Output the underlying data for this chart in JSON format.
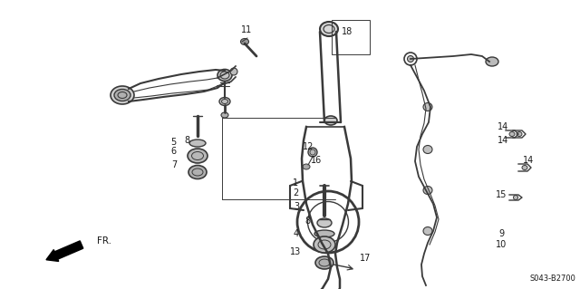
{
  "bg_color": "#ffffff",
  "line_color": "#3a3a3a",
  "text_color": "#1a1a1a",
  "diagram_code": "S043-B2700",
  "fr_label": "FR.",
  "font_size": 7.0,
  "figsize": [
    6.4,
    3.19
  ],
  "dpi": 100
}
